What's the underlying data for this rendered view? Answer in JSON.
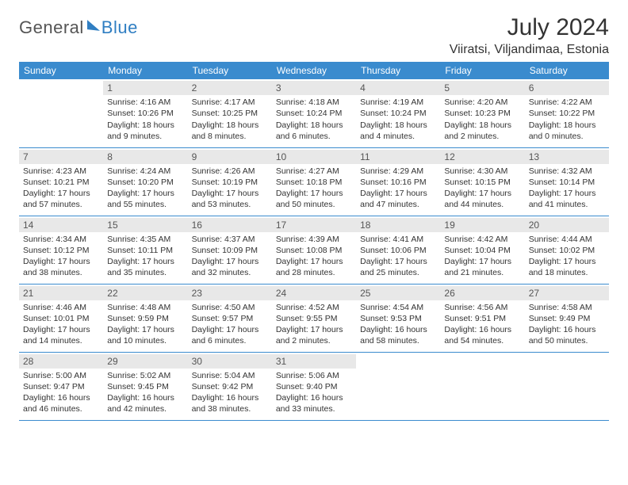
{
  "brand": {
    "part1": "General",
    "part2": "Blue"
  },
  "title": "July 2024",
  "location": "Viiratsi, Viljandimaa, Estonia",
  "colors": {
    "header_bg": "#3a8bce",
    "header_text": "#ffffff",
    "daynum_bg": "#e8e8e8",
    "rule": "#3a8bce",
    "logo_accent": "#2f7ec2"
  },
  "weekdays": [
    "Sunday",
    "Monday",
    "Tuesday",
    "Wednesday",
    "Thursday",
    "Friday",
    "Saturday"
  ],
  "weeks": [
    [
      null,
      {
        "n": "1",
        "sunrise": "4:16 AM",
        "sunset": "10:26 PM",
        "daylight": "18 hours and 9 minutes."
      },
      {
        "n": "2",
        "sunrise": "4:17 AM",
        "sunset": "10:25 PM",
        "daylight": "18 hours and 8 minutes."
      },
      {
        "n": "3",
        "sunrise": "4:18 AM",
        "sunset": "10:24 PM",
        "daylight": "18 hours and 6 minutes."
      },
      {
        "n": "4",
        "sunrise": "4:19 AM",
        "sunset": "10:24 PM",
        "daylight": "18 hours and 4 minutes."
      },
      {
        "n": "5",
        "sunrise": "4:20 AM",
        "sunset": "10:23 PM",
        "daylight": "18 hours and 2 minutes."
      },
      {
        "n": "6",
        "sunrise": "4:22 AM",
        "sunset": "10:22 PM",
        "daylight": "18 hours and 0 minutes."
      }
    ],
    [
      {
        "n": "7",
        "sunrise": "4:23 AM",
        "sunset": "10:21 PM",
        "daylight": "17 hours and 57 minutes."
      },
      {
        "n": "8",
        "sunrise": "4:24 AM",
        "sunset": "10:20 PM",
        "daylight": "17 hours and 55 minutes."
      },
      {
        "n": "9",
        "sunrise": "4:26 AM",
        "sunset": "10:19 PM",
        "daylight": "17 hours and 53 minutes."
      },
      {
        "n": "10",
        "sunrise": "4:27 AM",
        "sunset": "10:18 PM",
        "daylight": "17 hours and 50 minutes."
      },
      {
        "n": "11",
        "sunrise": "4:29 AM",
        "sunset": "10:16 PM",
        "daylight": "17 hours and 47 minutes."
      },
      {
        "n": "12",
        "sunrise": "4:30 AM",
        "sunset": "10:15 PM",
        "daylight": "17 hours and 44 minutes."
      },
      {
        "n": "13",
        "sunrise": "4:32 AM",
        "sunset": "10:14 PM",
        "daylight": "17 hours and 41 minutes."
      }
    ],
    [
      {
        "n": "14",
        "sunrise": "4:34 AM",
        "sunset": "10:12 PM",
        "daylight": "17 hours and 38 minutes."
      },
      {
        "n": "15",
        "sunrise": "4:35 AM",
        "sunset": "10:11 PM",
        "daylight": "17 hours and 35 minutes."
      },
      {
        "n": "16",
        "sunrise": "4:37 AM",
        "sunset": "10:09 PM",
        "daylight": "17 hours and 32 minutes."
      },
      {
        "n": "17",
        "sunrise": "4:39 AM",
        "sunset": "10:08 PM",
        "daylight": "17 hours and 28 minutes."
      },
      {
        "n": "18",
        "sunrise": "4:41 AM",
        "sunset": "10:06 PM",
        "daylight": "17 hours and 25 minutes."
      },
      {
        "n": "19",
        "sunrise": "4:42 AM",
        "sunset": "10:04 PM",
        "daylight": "17 hours and 21 minutes."
      },
      {
        "n": "20",
        "sunrise": "4:44 AM",
        "sunset": "10:02 PM",
        "daylight": "17 hours and 18 minutes."
      }
    ],
    [
      {
        "n": "21",
        "sunrise": "4:46 AM",
        "sunset": "10:01 PM",
        "daylight": "17 hours and 14 minutes."
      },
      {
        "n": "22",
        "sunrise": "4:48 AM",
        "sunset": "9:59 PM",
        "daylight": "17 hours and 10 minutes."
      },
      {
        "n": "23",
        "sunrise": "4:50 AM",
        "sunset": "9:57 PM",
        "daylight": "17 hours and 6 minutes."
      },
      {
        "n": "24",
        "sunrise": "4:52 AM",
        "sunset": "9:55 PM",
        "daylight": "17 hours and 2 minutes."
      },
      {
        "n": "25",
        "sunrise": "4:54 AM",
        "sunset": "9:53 PM",
        "daylight": "16 hours and 58 minutes."
      },
      {
        "n": "26",
        "sunrise": "4:56 AM",
        "sunset": "9:51 PM",
        "daylight": "16 hours and 54 minutes."
      },
      {
        "n": "27",
        "sunrise": "4:58 AM",
        "sunset": "9:49 PM",
        "daylight": "16 hours and 50 minutes."
      }
    ],
    [
      {
        "n": "28",
        "sunrise": "5:00 AM",
        "sunset": "9:47 PM",
        "daylight": "16 hours and 46 minutes."
      },
      {
        "n": "29",
        "sunrise": "5:02 AM",
        "sunset": "9:45 PM",
        "daylight": "16 hours and 42 minutes."
      },
      {
        "n": "30",
        "sunrise": "5:04 AM",
        "sunset": "9:42 PM",
        "daylight": "16 hours and 38 minutes."
      },
      {
        "n": "31",
        "sunrise": "5:06 AM",
        "sunset": "9:40 PM",
        "daylight": "16 hours and 33 minutes."
      },
      null,
      null,
      null
    ]
  ],
  "labels": {
    "sunrise": "Sunrise:",
    "sunset": "Sunset:",
    "daylight": "Daylight:"
  }
}
